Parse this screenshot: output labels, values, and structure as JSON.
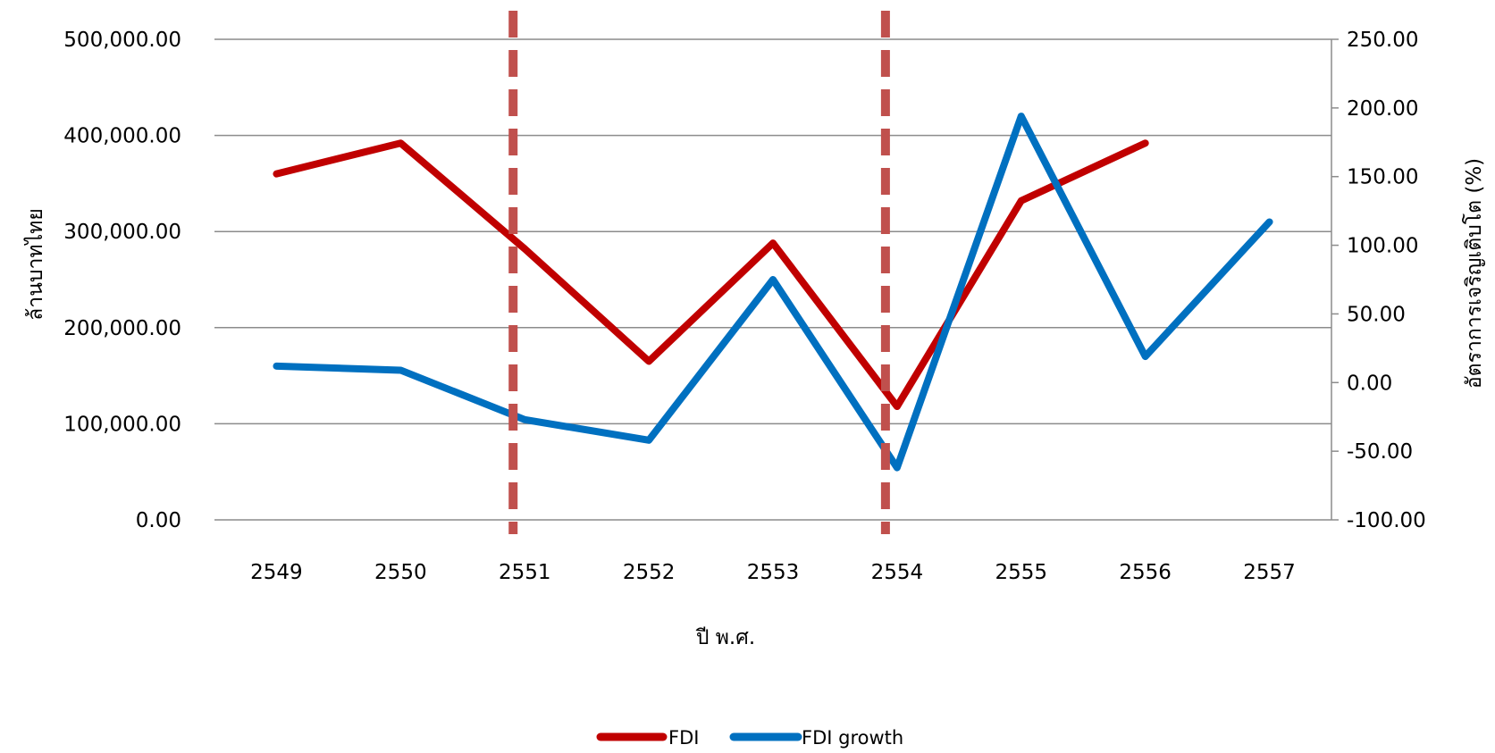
{
  "chart_data": {
    "type": "line",
    "xlabel": "ปี พ.ศ.",
    "ylabel_left": "ล้านบาทไทย",
    "ylabel_right": "อัตราการเจริญเติบโต  (%)",
    "categories": [
      "2549",
      "2550",
      "2551",
      "2552",
      "2553",
      "2554",
      "2555",
      "2556",
      "2557"
    ],
    "y_left": {
      "min": 0,
      "max": 500000,
      "step": 100000,
      "ticks": [
        "0.00",
        "100,000.00",
        "200,000.00",
        "300,000.00",
        "400,000.00",
        "500,000.00"
      ]
    },
    "y_right": {
      "min": -100,
      "max": 250,
      "step": 50,
      "ticks": [
        "-100.00",
        "-50.00",
        "0.00",
        "50.00",
        "100.00",
        "150.00",
        "200.00",
        "250.00"
      ]
    },
    "grid": "horizontal",
    "legend_position": "bottom-center",
    "series": [
      {
        "name": "FDI",
        "axis": "left",
        "color": "#c00000",
        "values": [
          360000,
          392000,
          282000,
          165000,
          288000,
          118000,
          332000,
          392000,
          null
        ]
      },
      {
        "name": "FDI growth",
        "axis": "right",
        "color": "#0070c0",
        "values": [
          12,
          9,
          -27,
          -42,
          75,
          -62,
          194,
          19,
          117
        ]
      }
    ],
    "vertical_markers": [
      {
        "category": "2551",
        "style": "dashed",
        "color": "#c0504d"
      },
      {
        "category": "2554",
        "style": "dashed",
        "color": "#c0504d"
      }
    ]
  }
}
